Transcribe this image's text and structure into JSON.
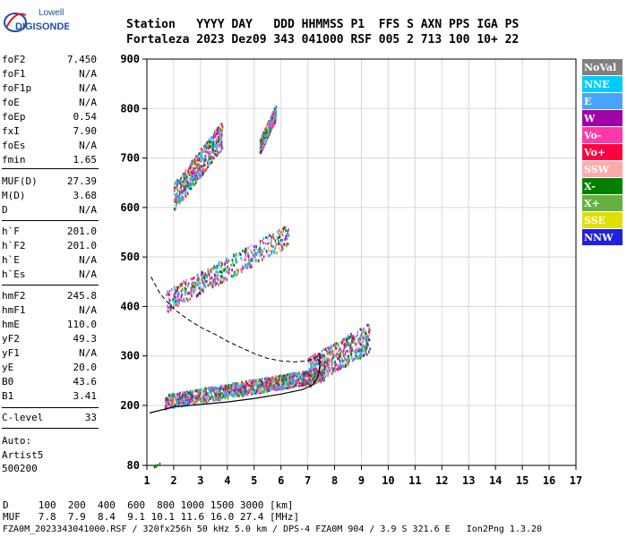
{
  "logo": {
    "line1": "Lowell",
    "line2": "DIGISONDE"
  },
  "header": {
    "row1": "Station   YYYY DAY   DDD HHMMSS P1  FFS S AXN PPS IGA PS",
    "row2": "Fortaleza 2023 Dez09 343 041000 RSF 005 2 713 100 10+ 22"
  },
  "params": {
    "group1": [
      {
        "k": "foF2",
        "v": "7.450"
      },
      {
        "k": "foF1",
        "v": "N/A"
      },
      {
        "k": "foF1p",
        "v": "N/A"
      },
      {
        "k": "foE",
        "v": "N/A"
      },
      {
        "k": "foEp",
        "v": "0.54"
      },
      {
        "k": "fxI",
        "v": "7.90"
      },
      {
        "k": "foEs",
        "v": "N/A"
      },
      {
        "k": "fmin",
        "v": "1.65"
      }
    ],
    "group2": [
      {
        "k": "MUF(D)",
        "v": "27.39"
      },
      {
        "k": "M(D)",
        "v": "3.68"
      },
      {
        "k": "D",
        "v": "N/A"
      }
    ],
    "group3": [
      {
        "k": "h`F",
        "v": "201.0"
      },
      {
        "k": "h`F2",
        "v": "201.0"
      },
      {
        "k": "h`E",
        "v": "N/A"
      },
      {
        "k": "h`Es",
        "v": "N/A"
      }
    ],
    "group4": [
      {
        "k": "hmF2",
        "v": "245.8"
      },
      {
        "k": "hmF1",
        "v": "N/A"
      },
      {
        "k": "hmE",
        "v": "110.0"
      },
      {
        "k": "yF2",
        "v": "49.3"
      },
      {
        "k": "yF1",
        "v": "N/A"
      },
      {
        "k": "yE",
        "v": "20.0"
      },
      {
        "k": "B0",
        "v": "43.6"
      },
      {
        "k": "B1",
        "v": "3.41"
      }
    ],
    "clevel": {
      "k": "C-level",
      "v": "33"
    },
    "auto": [
      "Auto:",
      "Artist5",
      "500200"
    ]
  },
  "legend": [
    {
      "label": "NoVal",
      "color": "#808080"
    },
    {
      "label": "NNE",
      "color": "#00ccff"
    },
    {
      "label": "E",
      "color": "#4aa3ff"
    },
    {
      "label": "W",
      "color": "#a000a8"
    },
    {
      "label": "Vo-",
      "color": "#ff3aa8"
    },
    {
      "label": "Vo+",
      "color": "#ff0040"
    },
    {
      "label": "SSW",
      "color": "#ffaaaa"
    },
    {
      "label": "X-",
      "color": "#008000"
    },
    {
      "label": "X+",
      "color": "#66b040"
    },
    {
      "label": "SSE",
      "color": "#e0e000"
    },
    {
      "label": "NNW",
      "color": "#2020e0"
    }
  ],
  "footer": {
    "line1": "D     100  200  400  600  800 1000 1500 3000 [km]",
    "line2": "MUF   7.8  7.9  8.4  9.1 10.1 11.6 16.0 27.4 [MHz]",
    "line3": "FZA0M_2023343041000.RSF / 320fx256h 50 kHz 5.0 km / DPS-4 FZA0M 904 / 3.9 S 321.6 E   Ion2Png 1.3.20"
  },
  "chart_data": {
    "type": "scatter",
    "xlim": [
      1,
      17
    ],
    "ylim": [
      80,
      900
    ],
    "xticks": [
      1,
      2,
      3,
      4,
      5,
      6,
      7,
      8,
      9,
      10,
      11,
      12,
      13,
      14,
      15,
      16,
      17
    ],
    "yticks": [
      80,
      200,
      300,
      400,
      500,
      600,
      700,
      800,
      900
    ],
    "grid": true,
    "legend_position": "right",
    "echo_clusters": [
      {
        "name": "first hop O/X trace",
        "x_range": [
          1.65,
          7.6
        ],
        "h_start": 205,
        "h_end": 260,
        "spread": 28
      },
      {
        "name": "F2 cusp near foF2",
        "x_range": [
          7.0,
          9.3
        ],
        "h_start": 260,
        "h_end": 330,
        "spread": 60
      },
      {
        "name": "second hop",
        "x_range": [
          1.7,
          6.3
        ],
        "h_start": 405,
        "h_end": 540,
        "spread": 45
      },
      {
        "name": "third hop",
        "x_range": [
          2.0,
          3.8
        ],
        "h_start": 615,
        "h_end": 740,
        "spread": 55
      },
      {
        "name": "third hop upper",
        "x_range": [
          5.2,
          5.8
        ],
        "h_start": 720,
        "h_end": 790,
        "spread": 30
      },
      {
        "name": "low echo",
        "x_range": [
          1.25,
          1.5
        ],
        "h_start": 80,
        "h_end": 85,
        "spread": 3
      }
    ],
    "profile_solid": [
      [
        1.1,
        185
      ],
      [
        2,
        197
      ],
      [
        3,
        202
      ],
      [
        4,
        207
      ],
      [
        5,
        214
      ],
      [
        6,
        223
      ],
      [
        6.8,
        232
      ],
      [
        7.2,
        242
      ],
      [
        7.35,
        255
      ],
      [
        7.43,
        270
      ],
      [
        7.45,
        285
      ],
      [
        7.45,
        305
      ]
    ],
    "profile_dashed": [
      [
        1.15,
        460
      ],
      [
        1.5,
        425
      ],
      [
        2,
        395
      ],
      [
        2.5,
        375
      ],
      [
        3,
        358
      ],
      [
        3.5,
        345
      ],
      [
        4,
        330
      ],
      [
        4.5,
        317
      ],
      [
        5,
        305
      ],
      [
        5.5,
        295
      ],
      [
        6,
        290
      ],
      [
        6.5,
        288
      ],
      [
        7,
        290
      ],
      [
        7.4,
        300
      ]
    ]
  }
}
